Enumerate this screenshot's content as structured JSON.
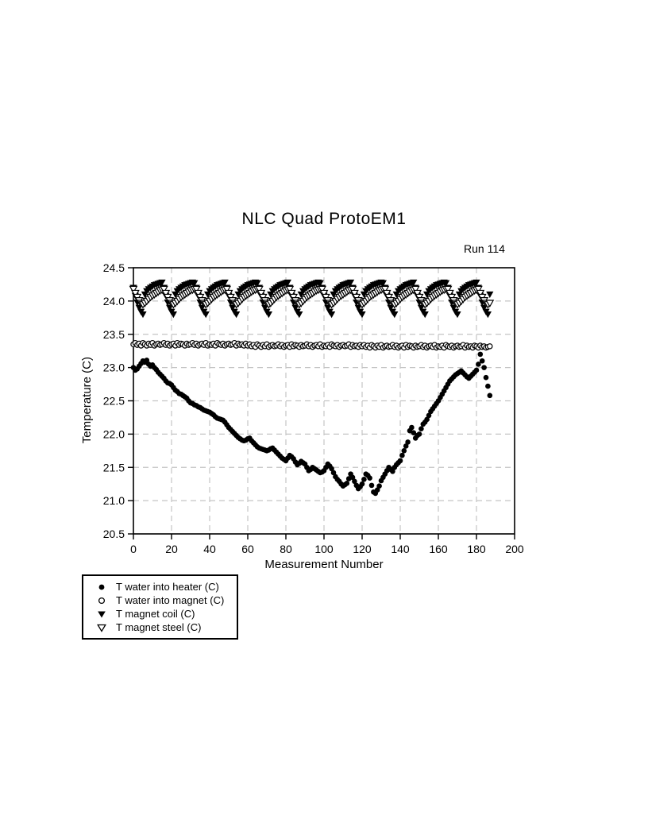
{
  "chart_data": {
    "type": "scatter",
    "title": "NLC Quad ProtoEM1",
    "annotation": "Run 114",
    "xlabel": "Measurement Number",
    "ylabel": "Temperature (C)",
    "xlim": [
      0,
      200
    ],
    "ylim": [
      20.5,
      24.5
    ],
    "x_ticks": [
      0,
      20,
      40,
      60,
      80,
      100,
      120,
      140,
      160,
      180,
      200
    ],
    "y_ticks": [
      20.5,
      21.0,
      21.5,
      22.0,
      22.5,
      23.0,
      23.5,
      24.0,
      24.5
    ],
    "grid": "dashed",
    "grid_color": "#c4c4c4",
    "axis_color": "#000000",
    "marker_color": "#000000",
    "legend_position": "bottom-left",
    "x_start": 0,
    "x_step": 1,
    "series": [
      {
        "name": "T water into heater (C)",
        "marker": "filled-circle",
        "values": [
          23.0,
          22.96,
          22.98,
          23.02,
          23.06,
          23.1,
          23.08,
          23.11,
          23.05,
          23.02,
          23.04,
          23.0,
          22.97,
          22.93,
          22.9,
          22.87,
          22.84,
          22.8,
          22.77,
          22.76,
          22.74,
          22.7,
          22.66,
          22.64,
          22.61,
          22.6,
          22.58,
          22.56,
          22.54,
          22.5,
          22.47,
          22.46,
          22.44,
          22.43,
          22.41,
          22.4,
          22.38,
          22.36,
          22.35,
          22.34,
          22.33,
          22.31,
          22.29,
          22.26,
          22.24,
          22.23,
          22.22,
          22.21,
          22.18,
          22.14,
          22.1,
          22.07,
          22.04,
          22.01,
          21.98,
          21.95,
          21.93,
          21.91,
          21.9,
          21.91,
          21.93,
          21.94,
          21.9,
          21.87,
          21.84,
          21.81,
          21.79,
          21.78,
          21.77,
          21.76,
          21.75,
          21.76,
          21.78,
          21.79,
          21.76,
          21.73,
          21.7,
          21.67,
          21.64,
          21.62,
          21.6,
          21.64,
          21.68,
          21.66,
          21.63,
          21.58,
          21.54,
          21.56,
          21.59,
          21.57,
          21.55,
          21.5,
          21.45,
          21.47,
          21.5,
          21.48,
          21.46,
          21.44,
          21.42,
          21.43,
          21.45,
          21.5,
          21.55,
          21.52,
          21.48,
          21.42,
          21.36,
          21.32,
          21.29,
          21.25,
          21.22,
          21.24,
          21.26,
          21.33,
          21.4,
          21.35,
          21.29,
          21.23,
          21.18,
          21.21,
          21.25,
          21.32,
          21.4,
          21.38,
          21.34,
          21.23,
          21.13,
          21.11,
          21.16,
          21.22,
          21.3,
          21.35,
          21.4,
          21.45,
          21.5,
          21.47,
          21.44,
          21.5,
          21.54,
          21.57,
          21.6,
          21.68,
          21.75,
          21.82,
          21.88,
          22.05,
          22.1,
          22.02,
          21.94,
          21.98,
          22.0,
          22.08,
          22.15,
          22.18,
          22.22,
          22.28,
          22.34,
          22.38,
          22.42,
          22.46,
          22.5,
          22.55,
          22.6,
          22.65,
          22.7,
          22.75,
          22.8,
          22.83,
          22.86,
          22.89,
          22.91,
          22.93,
          22.95,
          22.92,
          22.89,
          22.86,
          22.84,
          22.87,
          22.9,
          22.93,
          22.96,
          23.05,
          23.2,
          23.1,
          23.0,
          22.85,
          22.72,
          22.58
        ]
      },
      {
        "name": "T water into magnet (C)",
        "marker": "open-circle",
        "values": [
          23.35,
          23.37,
          23.34,
          23.36,
          23.33,
          23.37,
          23.35,
          23.33,
          23.36,
          23.34,
          23.37,
          23.33,
          23.35,
          23.36,
          23.34,
          23.35,
          23.37,
          23.34,
          23.36,
          23.33,
          23.35,
          23.36,
          23.33,
          23.37,
          23.34,
          23.36,
          23.35,
          23.33,
          23.36,
          23.34,
          23.35,
          23.37,
          23.34,
          23.36,
          23.33,
          23.35,
          23.36,
          23.34,
          23.37,
          23.33,
          23.35,
          23.34,
          23.36,
          23.33,
          23.37,
          23.35,
          23.34,
          23.36,
          23.33,
          23.35,
          23.36,
          23.34,
          23.35,
          23.37,
          23.33,
          23.36,
          23.34,
          23.35,
          23.33,
          23.36,
          23.33,
          23.35,
          23.32,
          23.34,
          23.31,
          23.35,
          23.33,
          23.31,
          23.34,
          23.32,
          23.35,
          23.31,
          23.33,
          23.34,
          23.32,
          23.33,
          23.35,
          23.32,
          23.34,
          23.31,
          23.33,
          23.34,
          23.31,
          23.35,
          23.32,
          23.34,
          23.33,
          23.31,
          23.34,
          23.32,
          23.33,
          23.35,
          23.32,
          23.34,
          23.31,
          23.33,
          23.34,
          23.32,
          23.35,
          23.31,
          23.33,
          23.32,
          23.34,
          23.31,
          23.35,
          23.33,
          23.32,
          23.34,
          23.31,
          23.33,
          23.34,
          23.32,
          23.33,
          23.35,
          23.31,
          23.34,
          23.32,
          23.33,
          23.31,
          23.34,
          23.32,
          23.34,
          23.31,
          23.33,
          23.3,
          23.34,
          23.32,
          23.3,
          23.33,
          23.31,
          23.34,
          23.3,
          23.32,
          23.33,
          23.31,
          23.32,
          23.34,
          23.31,
          23.33,
          23.3,
          23.32,
          23.33,
          23.3,
          23.34,
          23.31,
          23.33,
          23.32,
          23.3,
          23.33,
          23.31,
          23.32,
          23.34,
          23.31,
          23.33,
          23.3,
          23.32,
          23.33,
          23.31,
          23.34,
          23.3,
          23.32,
          23.31,
          23.33,
          23.3,
          23.34,
          23.32,
          23.31,
          23.33,
          23.3,
          23.32,
          23.33,
          23.31,
          23.32,
          23.34,
          23.3,
          23.33,
          23.31,
          23.32,
          23.3,
          23.33,
          23.32,
          23.3,
          23.33,
          23.31,
          23.32,
          23.3,
          23.31,
          23.32
        ]
      },
      {
        "name": "T magnet coil (C)",
        "marker": "filled-triangle-down",
        "values": [
          24.2,
          24.08,
          23.98,
          23.9,
          23.84,
          23.8,
          24.1,
          24.15,
          24.18,
          24.2,
          24.22,
          24.24,
          24.25,
          24.26,
          24.27,
          24.28,
          24.2,
          24.08,
          23.98,
          23.9,
          23.84,
          23.8,
          24.1,
          24.15,
          24.18,
          24.2,
          24.22,
          24.24,
          24.25,
          24.26,
          24.27,
          24.28,
          24.27,
          24.2,
          24.08,
          23.98,
          23.9,
          23.84,
          23.8,
          24.1,
          24.15,
          24.18,
          24.2,
          24.22,
          24.24,
          24.25,
          24.26,
          24.27,
          24.28,
          24.2,
          24.08,
          23.98,
          23.9,
          23.84,
          23.8,
          24.1,
          24.15,
          24.18,
          24.2,
          24.22,
          24.24,
          24.25,
          24.26,
          24.27,
          24.28,
          24.27,
          24.2,
          24.08,
          23.98,
          23.9,
          23.84,
          23.8,
          24.1,
          24.15,
          24.18,
          24.2,
          24.22,
          24.24,
          24.25,
          24.26,
          24.27,
          24.28,
          24.2,
          24.08,
          23.98,
          23.9,
          23.84,
          23.8,
          24.1,
          24.15,
          24.18,
          24.2,
          24.22,
          24.24,
          24.25,
          24.26,
          24.27,
          24.28,
          24.27,
          24.2,
          24.08,
          23.98,
          23.9,
          23.84,
          23.8,
          24.1,
          24.15,
          24.18,
          24.2,
          24.22,
          24.24,
          24.25,
          24.26,
          24.27,
          24.28,
          24.2,
          24.08,
          23.98,
          23.9,
          23.84,
          23.8,
          24.1,
          24.15,
          24.18,
          24.2,
          24.22,
          24.24,
          24.25,
          24.26,
          24.27,
          24.28,
          24.27,
          24.2,
          24.08,
          23.98,
          23.9,
          23.84,
          23.8,
          24.1,
          24.15,
          24.18,
          24.2,
          24.22,
          24.24,
          24.25,
          24.26,
          24.27,
          24.28,
          24.2,
          24.08,
          23.98,
          23.9,
          23.84,
          23.8,
          24.1,
          24.15,
          24.18,
          24.2,
          24.22,
          24.24,
          24.25,
          24.26,
          24.27,
          24.28,
          24.27,
          24.2,
          24.08,
          23.98,
          23.9,
          23.84,
          23.8,
          24.1,
          24.15,
          24.18,
          24.2,
          24.22,
          24.24,
          24.25,
          24.26,
          24.27,
          24.28,
          24.2,
          24.08,
          23.98,
          23.9,
          23.84,
          23.8,
          24.1
        ]
      },
      {
        "name": "T magnet steel (C)",
        "marker": "open-triangle-down",
        "values": [
          24.18,
          24.12,
          24.06,
          24.01,
          23.97,
          23.95,
          23.97,
          24.0,
          24.03,
          24.06,
          24.08,
          24.1,
          24.12,
          24.14,
          24.16,
          24.17,
          24.18,
          24.12,
          24.06,
          24.01,
          23.97,
          23.95,
          23.97,
          24.0,
          24.03,
          24.06,
          24.08,
          24.1,
          24.12,
          24.14,
          24.16,
          24.17,
          24.18,
          24.18,
          24.12,
          24.06,
          24.01,
          23.97,
          23.95,
          23.97,
          24.0,
          24.03,
          24.06,
          24.08,
          24.1,
          24.12,
          24.14,
          24.16,
          24.17,
          24.18,
          24.12,
          24.06,
          24.01,
          23.97,
          23.95,
          23.97,
          24.0,
          24.03,
          24.06,
          24.08,
          24.1,
          24.12,
          24.14,
          24.16,
          24.17,
          24.18,
          24.18,
          24.12,
          24.06,
          24.01,
          23.97,
          23.95,
          23.97,
          24.0,
          24.03,
          24.06,
          24.08,
          24.1,
          24.12,
          24.14,
          24.16,
          24.17,
          24.18,
          24.12,
          24.06,
          24.01,
          23.97,
          23.95,
          23.97,
          24.0,
          24.03,
          24.06,
          24.08,
          24.1,
          24.12,
          24.14,
          24.16,
          24.17,
          24.18,
          24.18,
          24.12,
          24.06,
          24.01,
          23.97,
          23.95,
          23.97,
          24.0,
          24.03,
          24.06,
          24.08,
          24.1,
          24.12,
          24.14,
          24.16,
          24.17,
          24.18,
          24.12,
          24.06,
          24.01,
          23.97,
          23.95,
          23.97,
          24.0,
          24.03,
          24.06,
          24.08,
          24.1,
          24.12,
          24.14,
          24.16,
          24.17,
          24.18,
          24.18,
          24.12,
          24.06,
          24.01,
          23.97,
          23.95,
          23.97,
          24.0,
          24.03,
          24.06,
          24.08,
          24.1,
          24.12,
          24.14,
          24.16,
          24.17,
          24.18,
          24.12,
          24.06,
          24.01,
          23.97,
          23.95,
          23.97,
          24.0,
          24.03,
          24.06,
          24.08,
          24.1,
          24.12,
          24.14,
          24.16,
          24.17,
          24.18,
          24.18,
          24.12,
          24.06,
          24.01,
          23.97,
          23.95,
          23.97,
          24.0,
          24.03,
          24.06,
          24.08,
          24.1,
          24.12,
          24.14,
          24.16,
          24.17,
          24.18,
          24.12,
          24.06,
          24.01,
          23.97,
          23.95,
          23.97
        ]
      }
    ]
  }
}
